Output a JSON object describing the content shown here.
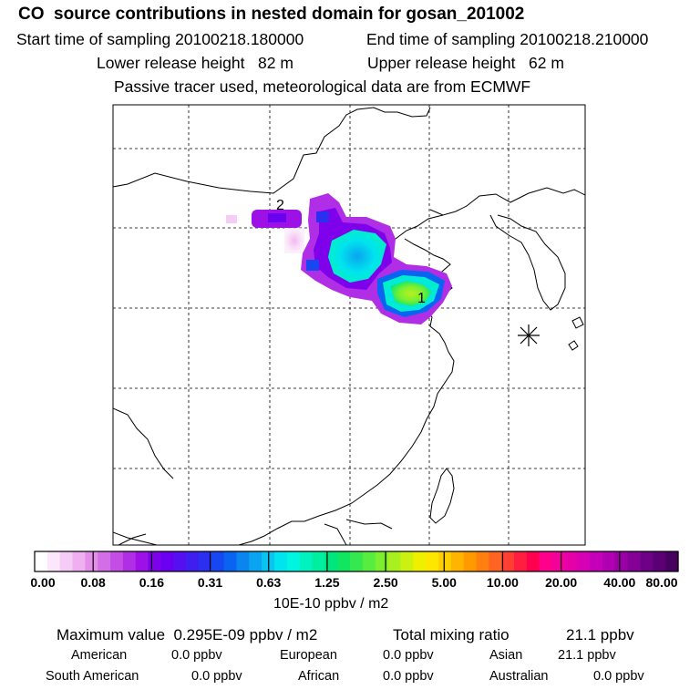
{
  "header": {
    "title": "CO  source contributions in nested domain for gosan_201002",
    "start_label": "Start time of sampling 20100218.180000",
    "end_label": "End time of sampling 20100218.210000",
    "lower_label": "Lower release height   82 m",
    "upper_label": "Upper release height   62 m",
    "tracer_note": "Passive tracer used, meteorological data are from ECMWF"
  },
  "map": {
    "markers": [
      {
        "label": "1",
        "name": "peak-1"
      },
      {
        "label": "2",
        "name": "peak-2"
      }
    ],
    "receptor_symbol": "asterisk-icon"
  },
  "colorbar": {
    "ticks": [
      "0.00",
      "0.08",
      "0.16",
      "0.31",
      "0.63",
      "1.25",
      "2.50",
      "5.00",
      "10.00",
      "20.00",
      "40.00",
      "80.00"
    ],
    "unit": "10E-10 ppbv / m2",
    "colors": [
      "#ffffff",
      "#fbe6fb",
      "#f5ccf5",
      "#eeb0f0",
      "#e38fe9",
      "#d36fe6",
      "#c34ee5",
      "#b02ee6",
      "#9d10e6",
      "#7f00ea",
      "#6b00f0",
      "#5410f0",
      "#3f1ef0",
      "#2a2ff0",
      "#1747f0",
      "#0a64f2",
      "#0b84f0",
      "#0aa4f0",
      "#07c4f0",
      "#00e4ee",
      "#00f5e0",
      "#00f2bf",
      "#00eea0",
      "#00e67e",
      "#10e660",
      "#35e850",
      "#58ec40",
      "#7cf030",
      "#a8f020",
      "#ccf010",
      "#eef000",
      "#ffe600",
      "#ffd000",
      "#ffb400",
      "#ff9a00",
      "#ff7f10",
      "#ff6424",
      "#ff3e34",
      "#ff1e40",
      "#ff0050",
      "#ff008a",
      "#f4009a",
      "#e600a8",
      "#d600b4",
      "#c400b8",
      "#b000b2",
      "#9a00a6",
      "#840096",
      "#6e0086",
      "#5a0074",
      "#460060"
    ]
  },
  "summary": {
    "max_label": "Maximum value  0.295E-09 ppbv / m2",
    "total_label": "Total mixing ratio",
    "total_value": "21.1 ppbv",
    "contributions": [
      {
        "label": "American",
        "value": "0.0 ppbv"
      },
      {
        "label": "European",
        "value": "0.0 ppbv"
      },
      {
        "label": "Asian",
        "value": "21.1 ppbv"
      },
      {
        "label": "South American",
        "value": "0.0 ppbv"
      },
      {
        "label": "African",
        "value": "0.0 ppbv"
      },
      {
        "label": "Australian",
        "value": "0.0 ppbv"
      }
    ]
  }
}
